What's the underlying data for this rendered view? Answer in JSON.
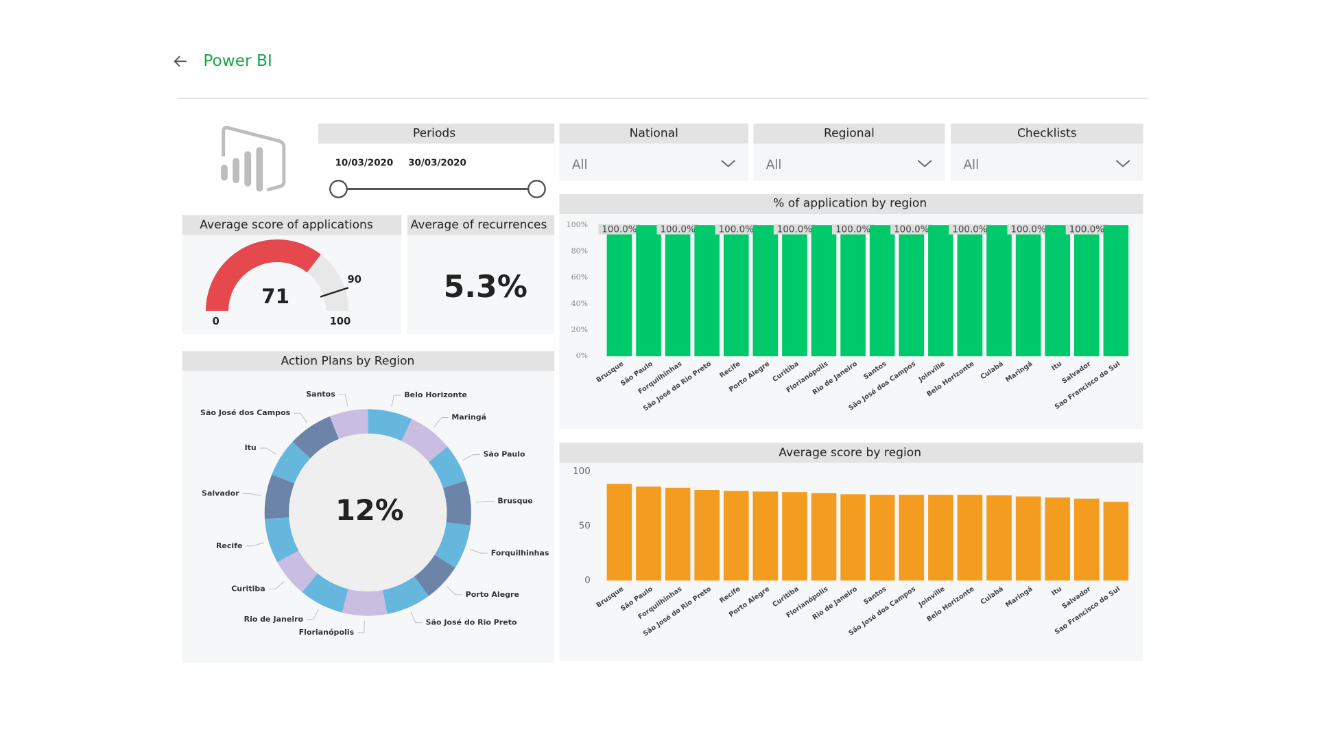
{
  "header": {
    "title": "Power BI"
  },
  "filters": [
    {
      "title": "Periods",
      "start": "10/03/2020",
      "end": "30/03/2020"
    },
    {
      "title": "National",
      "value": "All"
    },
    {
      "title": "Regional",
      "value": "All"
    },
    {
      "title": "Checklists",
      "value": "All"
    }
  ],
  "chart_data": [
    {
      "type": "gauge",
      "title": "Average score of applications",
      "value": 71,
      "min": 0,
      "max": 100,
      "target": 90,
      "color": "#e5484d",
      "track_color": "#e8e8e8"
    },
    {
      "type": "card",
      "title": "Average of recurrences",
      "value": 5.3,
      "value_label": "5.3%"
    },
    {
      "type": "donut",
      "title": "Action Plans by Region",
      "center_label": "12%",
      "categories": [
        "Belo Horizonte",
        "Maringá",
        "São Paulo",
        "Brusque",
        "Forquilhinhas",
        "Porto Alegre",
        "São José do Rio Preto",
        "Florianópolis",
        "Rio de Janeiro",
        "Curitiba",
        "Recife",
        "Salvador",
        "Itu",
        "São José dos Campos",
        "Santos"
      ],
      "values": [
        7,
        7,
        6,
        7,
        7,
        6,
        7,
        7,
        7,
        6,
        7,
        7,
        6,
        7,
        6
      ],
      "colors": [
        "#66b7de",
        "#c9bde1",
        "#66b7de",
        "#6c84a8",
        "#66b7de",
        "#6c84a8",
        "#66b7de",
        "#c9bde1",
        "#66b7de",
        "#c9bde1",
        "#66b7de",
        "#6c84a8",
        "#66b7de",
        "#6c84a8",
        "#c9bde1"
      ]
    },
    {
      "type": "bar",
      "title": "% of application by region",
      "categories": [
        "Brusque",
        "São Paulo",
        "Forquilhinhas",
        "São José do Rio Preto",
        "Recife",
        "Porto Alegre",
        "Curitiba",
        "Florianópolis",
        "Rio de Janeiro",
        "Santos",
        "São José dos Campos",
        "Joinville",
        "Belo Horizonte",
        "Cuiabá",
        "Maringá",
        "Itu",
        "Salvador",
        "Sao Francisco do Sul"
      ],
      "values": [
        100,
        100,
        100,
        100,
        100,
        100,
        100,
        100,
        100,
        100,
        100,
        100,
        100,
        100,
        100,
        100,
        100,
        100
      ],
      "value_labels": [
        "100.0%",
        null,
        "100.0%",
        null,
        "100.0%",
        null,
        "100.0%",
        null,
        "100.0%",
        null,
        "100.0%",
        null,
        "100.0%",
        null,
        "100.0%",
        null,
        "100.0%",
        null
      ],
      "color": "#00c96b",
      "ylim": [
        0,
        100
      ],
      "yticks": [
        {
          "value": 0,
          "label": "0%"
        },
        {
          "value": 20,
          "label": "20%"
        },
        {
          "value": 40,
          "label": "40%"
        },
        {
          "value": 60,
          "label": "60%"
        },
        {
          "value": 80,
          "label": "80%"
        },
        {
          "value": 100,
          "label": "100%"
        }
      ]
    },
    {
      "type": "bar",
      "title": "Average score by region",
      "categories": [
        "Brusque",
        "São Paulo",
        "Forquilhinhas",
        "São José do Rio Preto",
        "Recife",
        "Porto Alegre",
        "Curitiba",
        "Florianópolis",
        "Rio de Janeiro",
        "Santos",
        "São José dos Campos",
        "Joinville",
        "Belo Horizonte",
        "Cuiabá",
        "Maringá",
        "Itu",
        "Salvador",
        "Sao Francisco do Sul"
      ],
      "values": [
        88.5,
        86,
        85,
        83,
        82,
        81.5,
        81,
        80,
        79,
        78.5,
        78.5,
        78.5,
        78.5,
        78,
        77,
        76,
        75,
        72
      ],
      "color": "#f39c1f",
      "ylim": [
        0,
        100
      ],
      "yticks": [
        0,
        50,
        100
      ]
    }
  ]
}
